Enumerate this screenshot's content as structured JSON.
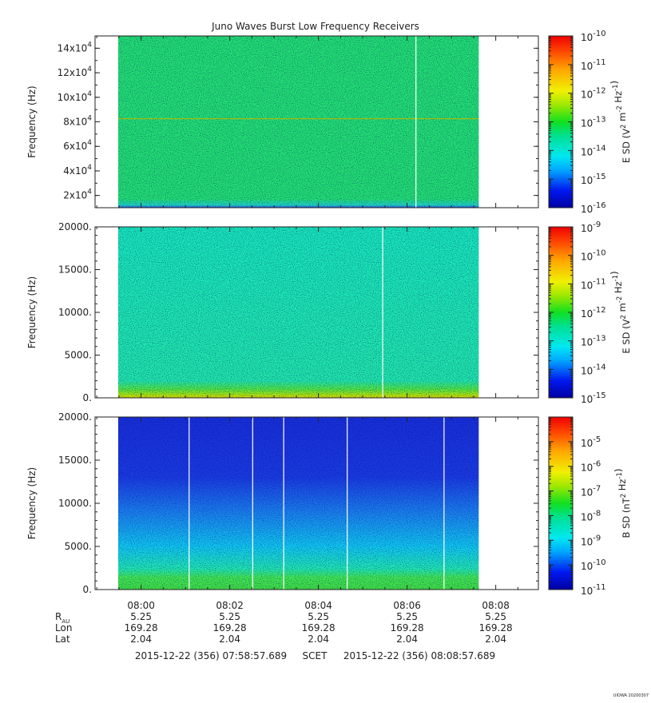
{
  "chart_data": {
    "type": "heatmap",
    "title": "Juno Waves Burst Low Frequency Receivers",
    "time_axis": {
      "ticks": [
        "08:00",
        "08:02",
        "08:04",
        "08:06",
        "08:08"
      ],
      "ephemeris": [
        {
          "label": "R",
          "sub": "AU",
          "values": [
            "5.25",
            "5.25",
            "5.25",
            "5.25",
            "5.25"
          ]
        },
        {
          "label": "Lon",
          "sub": "",
          "values": [
            "169.28",
            "169.28",
            "169.28",
            "169.28",
            "169.28"
          ]
        },
        {
          "label": "Lat",
          "sub": "",
          "values": [
            "2.04",
            "2.04",
            "2.04",
            "2.04",
            "2.04"
          ]
        }
      ],
      "range_label": {
        "start": "2015-12-22 (356) 07:58:57.689",
        "middle": "SCET",
        "end": "2015-12-22 (356) 08:08:57.689"
      }
    },
    "panels": [
      {
        "ylabel": "Frequency (Hz)",
        "ylim": [
          10000,
          150000
        ],
        "yticks": [
          {
            "v": 20000,
            "mant": "2x10",
            "exp": "4"
          },
          {
            "v": 40000,
            "mant": "4x10",
            "exp": "4"
          },
          {
            "v": 60000,
            "mant": "6x10",
            "exp": "4"
          },
          {
            "v": 80000,
            "mant": "8x10",
            "exp": "4"
          },
          {
            "v": 100000,
            "mant": "10x10",
            "exp": "4"
          },
          {
            "v": 120000,
            "mant": "12x10",
            "exp": "4"
          },
          {
            "v": 140000,
            "mant": "14x10",
            "exp": "4"
          }
        ],
        "data_time_range": [
          "07:59:29",
          "08:07:37"
        ],
        "colorbar": {
          "label_base": "E SD (V",
          "label_mid": " m",
          "label_end": " Hz",
          "e1": "2",
          "e2": "-2",
          "e3": "-1",
          "close": ")",
          "log_range": [
            -16,
            -10
          ],
          "ticks": [
            -16,
            -15,
            -14,
            -13,
            -12,
            -11,
            -10
          ]
        },
        "colors": {
          "bg": "#22e26b",
          "low": "#00ccee"
        }
      },
      {
        "ylabel": "Frequency (Hz)",
        "ylim": [
          0,
          20000
        ],
        "yticks": [
          {
            "v": 0,
            "text": "0."
          },
          {
            "v": 5000,
            "text": "5000."
          },
          {
            "v": 10000,
            "text": "10000."
          },
          {
            "v": 15000,
            "text": "15000."
          },
          {
            "v": 20000,
            "text": "20000."
          }
        ],
        "data_time_range": [
          "07:59:29",
          "08:07:37"
        ],
        "colorbar": {
          "label_base": "E SD (V",
          "label_mid": " m",
          "label_end": " Hz",
          "e1": "2",
          "e2": "-2",
          "e3": "-1",
          "close": ")",
          "log_range": [
            -15,
            -9
          ],
          "ticks": [
            -15,
            -14,
            -13,
            -12,
            -11,
            -10,
            -9
          ]
        },
        "colors": {
          "bg": "#1ee8b2",
          "low": "#4ee83a"
        }
      },
      {
        "ylabel": "Frequency (Hz)",
        "ylim": [
          0,
          20000
        ],
        "yticks": [
          {
            "v": 0,
            "text": "0."
          },
          {
            "v": 5000,
            "text": "5000."
          },
          {
            "v": 10000,
            "text": "10000."
          },
          {
            "v": 15000,
            "text": "15000."
          },
          {
            "v": 20000,
            "text": "20000."
          }
        ],
        "data_time_range": [
          "07:59:29",
          "08:07:37"
        ],
        "colorbar": {
          "label_base": "B SD (nT",
          "label_mid": "",
          "label_end": " Hz",
          "e1": "2",
          "e2": "",
          "e3": "-1",
          "close": ")",
          "log_range": [
            -11,
            -4
          ],
          "ticks": [
            -11,
            -10,
            -9,
            -8,
            -7,
            -6,
            -5
          ]
        },
        "colors": {
          "top": "#1632dd",
          "mid": "#00b4ec",
          "low": "#3ee64a"
        }
      }
    ]
  },
  "footer": {
    "stamp": "UIOWA 20200307"
  }
}
